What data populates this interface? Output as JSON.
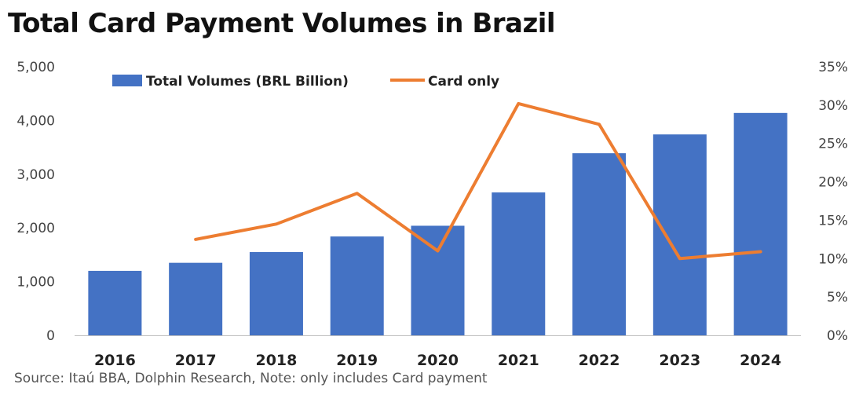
{
  "chart_data": {
    "type": "bar",
    "title": "Total Card Payment Volumes in Brazil",
    "categories": [
      "2016",
      "2017",
      "2018",
      "2019",
      "2020",
      "2021",
      "2022",
      "2023",
      "2024"
    ],
    "series": [
      {
        "name": "Total Volumes (BRL Billion)",
        "type": "bar",
        "axis": "left",
        "color": "#4472C4",
        "values": [
          1200,
          1350,
          1550,
          1840,
          2040,
          2660,
          3390,
          3740,
          4140
        ]
      },
      {
        "name": "Card only",
        "type": "line",
        "axis": "right",
        "color": "#ED7D31",
        "values": [
          null,
          12.5,
          14.5,
          18.5,
          11.0,
          30.2,
          27.5,
          10.0,
          10.9
        ]
      }
    ],
    "y_left": {
      "min": 0,
      "max": 5000,
      "ticks": [
        "0",
        "1,000",
        "2,000",
        "3,000",
        "4,000",
        "5,000"
      ]
    },
    "y_right": {
      "min": 0,
      "max": 35,
      "ticks": [
        "0%",
        "5%",
        "10%",
        "15%",
        "20%",
        "25%",
        "30%",
        "35%"
      ]
    },
    "grid": false,
    "legend_position": "top"
  },
  "source_note": "Source: Itaú BBA,  Dolphin Research, Note:  only includes Card payment"
}
